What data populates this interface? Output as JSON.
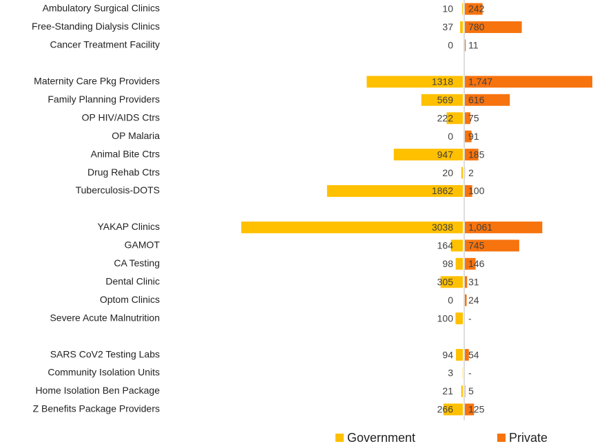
{
  "chart_data": {
    "type": "butterfly",
    "categories": [
      "Ambulatory Surgical Clinics",
      "Free-Standing Dialysis Clinics",
      "Cancer Treatment Facility",
      null,
      "Maternity Care Pkg Providers",
      "Family Planning Providers",
      "OP HIV/AIDS Ctrs",
      "OP Malaria",
      "Animal Bite Ctrs",
      "Drug Rehab Ctrs",
      "Tuberculosis-DOTS",
      null,
      "YAKAP Clinics",
      "GAMOT",
      "CA Testing",
      "Dental Clinic",
      "Optom Clinics",
      "Severe Acute Malnutrition",
      null,
      "SARS CoV2 Testing Labs",
      "Community Isolation Units",
      "Home Isolation Ben Package",
      "Z Benefits Package Providers"
    ],
    "series": [
      {
        "name": "Government",
        "color": "#ffc000",
        "values": [
          10,
          37,
          0,
          null,
          1318,
          569,
          222,
          0,
          947,
          20,
          1862,
          null,
          3038,
          164,
          98,
          305,
          0,
          100,
          null,
          94,
          3,
          21,
          266
        ]
      },
      {
        "name": "Private",
        "color": "#f7730e",
        "values": [
          242,
          780,
          11,
          null,
          1747,
          616,
          75,
          91,
          185,
          2,
          100,
          null,
          1061,
          745,
          146,
          31,
          24,
          null,
          null,
          54,
          null,
          5,
          125
        ],
        "value_labels": [
          "242",
          "780",
          "11",
          null,
          "1,747",
          "616",
          "75",
          "91",
          "185",
          "2",
          "100",
          null,
          "1,061",
          "745",
          "146",
          "31",
          "24",
          "-",
          null,
          "54",
          "-",
          "5",
          "125"
        ]
      }
    ],
    "legend": "bottom"
  }
}
